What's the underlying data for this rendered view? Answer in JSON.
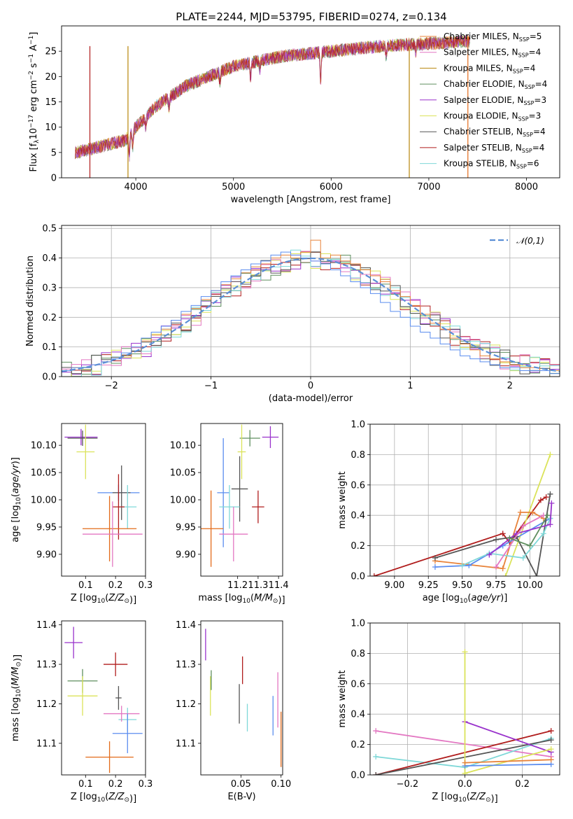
{
  "title": "PLATE=2244, MJD=53795, FIBERID=0274, z=0.134",
  "colors": {
    "chabrier_miles": "#e8833a",
    "salpeter_miles": "#e377c2",
    "kroupa_miles": "#b8860b",
    "chabrier_elodie": "#5f8f5f",
    "salpeter_elodie": "#9932cc",
    "kroupa_elodie": "#dbe35a",
    "chabrier_stelib": "#555555",
    "salpeter_stelib": "#b01c1c",
    "kroupa_stelib": "#7fd8d8",
    "extra_blue": "#5b8def",
    "extra_orange": "#e36b1a"
  },
  "chart_data": [
    {
      "id": "spectrum",
      "type": "line",
      "title": "PLATE=2244, MJD=53795, FIBERID=0274, z=0.134",
      "xlabel": "wavelength [Angstrom, rest frame]",
      "ylabel": "Flux [f_λ10^-17 erg cm^-2 s^-1 A^-1]",
      "xlim": [
        3240,
        8340
      ],
      "ylim": [
        0,
        30
      ],
      "xticks": [
        4000,
        5000,
        6000,
        7000,
        8000
      ],
      "yticks": [
        0,
        5,
        10,
        15,
        20,
        25
      ],
      "legend_position": "top-right",
      "legend": [
        {
          "label": "Chabrier MILES, N",
          "sub": "SSP",
          "n": "=5",
          "color": "#e8833a"
        },
        {
          "label": "Salpeter MILES, N",
          "sub": "SSP",
          "n": "=4",
          "color": "#e377c2"
        },
        {
          "label": "Kroupa MILES, N",
          "sub": "SSP",
          "n": "=4",
          "color": "#b8860b"
        },
        {
          "label": "Chabrier ELODIE, N",
          "sub": "SSP",
          "n": "=4",
          "color": "#5f8f5f"
        },
        {
          "label": "Salpeter ELODIE, N",
          "sub": "SSP",
          "n": "=3",
          "color": "#9932cc"
        },
        {
          "label": "Kroupa ELODIE, N",
          "sub": "SSP",
          "n": "=3",
          "color": "#dbe35a"
        },
        {
          "label": "Chabrier STELIB, N",
          "sub": "SSP",
          "n": "=4",
          "color": "#555555"
        },
        {
          "label": "Salpeter STELIB, N",
          "sub": "SSP",
          "n": "=4",
          "color": "#b01c1c"
        },
        {
          "label": "Kroupa STELIB, N",
          "sub": "SSP",
          "n": "=6",
          "color": "#7fd8d8"
        }
      ],
      "continuum": {
        "x": [
          3380,
          3500,
          3700,
          3900,
          4000,
          4200,
          4500,
          5000,
          5500,
          6000,
          6500,
          7000,
          7400
        ],
        "y": [
          5,
          5.5,
          6.5,
          7.5,
          10,
          14,
          18,
          22,
          24,
          25,
          26,
          26.5,
          27
        ]
      },
      "edge_lines": [
        {
          "x": 3530,
          "color": "#b01c1c"
        },
        {
          "x": 3920,
          "color": "#b8860b"
        },
        {
          "x": 6800,
          "color": "#b8860b"
        },
        {
          "x": 7400,
          "color": "#e36b1a"
        }
      ]
    },
    {
      "id": "residuals",
      "type": "bar",
      "xlabel": "(data-model)/error",
      "ylabel": "Normed distribution",
      "xlim": [
        -2.5,
        2.5
      ],
      "ylim": [
        0,
        0.51
      ],
      "xticks": [
        -2,
        -1,
        0,
        1,
        2
      ],
      "yticks": [
        0.0,
        0.1,
        0.2,
        0.3,
        0.4,
        0.5
      ],
      "grid": true,
      "legend_position": "top-right",
      "legend": [
        {
          "label": "𝒩(0,1)",
          "color": "#5b8fd6"
        }
      ],
      "bin_width": 0.1,
      "histograms": [
        {
          "color": "#e8833a",
          "values": [
            0.02,
            0.03,
            0.03,
            0.04,
            0.05,
            0.06,
            0.07,
            0.1,
            0.12,
            0.14,
            0.16,
            0.19,
            0.21,
            0.23,
            0.26,
            0.29,
            0.31,
            0.33,
            0.35,
            0.37,
            0.38,
            0.4,
            0.41,
            0.4,
            0.42,
            0.46,
            0.4,
            0.41,
            0.39,
            0.38,
            0.36,
            0.34,
            0.32,
            0.29,
            0.27,
            0.24,
            0.21,
            0.18,
            0.16,
            0.13,
            0.11,
            0.09,
            0.07,
            0.06,
            0.05,
            0.04,
            0.03,
            0.03,
            0.02,
            0.02
          ]
        },
        {
          "color": "#5b8def",
          "values": [
            0.02,
            0.03,
            0.03,
            0.04,
            0.05,
            0.06,
            0.08,
            0.1,
            0.13,
            0.15,
            0.17,
            0.19,
            0.22,
            0.24,
            0.27,
            0.29,
            0.32,
            0.34,
            0.36,
            0.38,
            0.39,
            0.41,
            0.42,
            0.41,
            0.4,
            0.39,
            0.38,
            0.36,
            0.34,
            0.32,
            0.3,
            0.28,
            0.25,
            0.22,
            0.2,
            0.17,
            0.15,
            0.13,
            0.11,
            0.09,
            0.07,
            0.06,
            0.05,
            0.04,
            0.03,
            0.03,
            0.02,
            0.02,
            0.02,
            0.01
          ]
        }
      ],
      "normal_curve": {
        "mean": 0,
        "std": 1
      }
    },
    {
      "id": "age_vs_Z",
      "type": "scatter",
      "xlabel": "Z [log10(Z/Z⊙)]",
      "ylabel": "age [log10(age/yr)]",
      "xlim": [
        0.02,
        0.3
      ],
      "ylim": [
        9.86,
        10.14
      ],
      "xticks": [
        0.1,
        0.2,
        0.3
      ],
      "yticks": [
        9.9,
        9.95,
        10.0,
        10.05,
        10.1
      ],
      "points": [
        {
          "x": 0.085,
          "y": 10.115,
          "xerr": 0.055,
          "yerr": 0.015,
          "color": "#9932cc"
        },
        {
          "x": 0.09,
          "y": 10.113,
          "xerr": 0.05,
          "yerr": 0.014,
          "color": "#555555"
        },
        {
          "x": 0.1,
          "y": 10.088,
          "xerr": 0.03,
          "yerr": 0.05,
          "color": "#dbe35a"
        },
        {
          "x": 0.21,
          "y": 10.013,
          "xerr": 0.07,
          "yerr": 0.015,
          "color": "#5b8def"
        },
        {
          "x": 0.22,
          "y": 10.013,
          "xerr": 0.03,
          "yerr": 0.05,
          "color": "#555555"
        },
        {
          "x": 0.24,
          "y": 9.987,
          "xerr": 0.03,
          "yerr": 0.04,
          "color": "#7fd8d8"
        },
        {
          "x": 0.21,
          "y": 9.987,
          "xerr": 0.02,
          "yerr": 0.06,
          "color": "#b01c1c"
        },
        {
          "x": 0.18,
          "y": 9.947,
          "xerr": 0.09,
          "yerr": 0.06,
          "color": "#e36b1a"
        },
        {
          "x": 0.19,
          "y": 9.937,
          "xerr": 0.1,
          "yerr": 0.06,
          "color": "#e377c2"
        }
      ]
    },
    {
      "id": "age_vs_mass",
      "type": "scatter",
      "xlabel": "mass [log10(M/M⊙)]",
      "xlim": [
        11.02,
        11.42
      ],
      "ylim": [
        9.86,
        10.14
      ],
      "xticks": [
        11.2,
        11.3,
        11.4
      ],
      "yticks": [
        9.9,
        9.95,
        10.0,
        10.05,
        10.1
      ],
      "points": [
        {
          "x": 11.36,
          "y": 10.115,
          "xerr": 0.04,
          "yerr": 0.02,
          "color": "#9932cc"
        },
        {
          "x": 11.26,
          "y": 10.113,
          "xerr": 0.05,
          "yerr": 0.015,
          "color": "#5f8f5f"
        },
        {
          "x": 11.22,
          "y": 10.088,
          "xerr": 0.02,
          "yerr": 0.05,
          "color": "#dbe35a"
        },
        {
          "x": 11.13,
          "y": 10.013,
          "xerr": 0.03,
          "yerr": 0.1,
          "color": "#5b8def"
        },
        {
          "x": 11.21,
          "y": 10.02,
          "xerr": 0.04,
          "yerr": 0.06,
          "color": "#555555"
        },
        {
          "x": 11.16,
          "y": 9.987,
          "xerr": 0.05,
          "yerr": 0.04,
          "color": "#7fd8d8"
        },
        {
          "x": 11.3,
          "y": 9.987,
          "xerr": 0.03,
          "yerr": 0.03,
          "color": "#b01c1c"
        },
        {
          "x": 11.07,
          "y": 9.947,
          "xerr": 0.06,
          "yerr": 0.07,
          "color": "#e36b1a"
        },
        {
          "x": 11.18,
          "y": 9.937,
          "xerr": 0.07,
          "yerr": 0.05,
          "color": "#e377c2"
        }
      ]
    },
    {
      "id": "weight_vs_age",
      "type": "line",
      "xlabel": "age [log10(age/yr)]",
      "ylabel": "mass weight",
      "xlim": [
        8.82,
        10.22
      ],
      "ylim": [
        0,
        1
      ],
      "xticks": [
        9.0,
        9.25,
        9.5,
        9.75,
        10.0
      ],
      "yticks": [
        0.0,
        0.2,
        0.4,
        0.6,
        0.8,
        1.0
      ],
      "grid": true,
      "series": [
        {
          "color": "#b01c1c",
          "x": [
            8.85,
            9.8,
            9.85,
            10.08,
            10.12
          ],
          "y": [
            0.0,
            0.28,
            0.22,
            0.5,
            0.52
          ]
        },
        {
          "color": "#dbe35a",
          "x": [
            9.82,
            10.15
          ],
          "y": [
            0.0,
            0.8
          ]
        },
        {
          "color": "#e8833a",
          "x": [
            9.3,
            9.8,
            9.93,
            10.02,
            10.1
          ],
          "y": [
            0.1,
            0.05,
            0.42,
            0.42,
            0.38
          ]
        },
        {
          "color": "#5b8def",
          "x": [
            9.3,
            9.55,
            9.8,
            10.15
          ],
          "y": [
            0.06,
            0.07,
            0.2,
            0.38
          ]
        },
        {
          "color": "#555555",
          "x": [
            9.3,
            9.75,
            9.9,
            10.05,
            10.15
          ],
          "y": [
            0.12,
            0.24,
            0.26,
            0.0,
            0.54
          ]
        },
        {
          "color": "#7fd8d8",
          "x": [
            9.5,
            9.7,
            9.95,
            10.1,
            10.15
          ],
          "y": [
            0.07,
            0.15,
            0.12,
            0.28,
            0.38
          ]
        },
        {
          "color": "#9932cc",
          "x": [
            9.7,
            9.9,
            10.15,
            10.16
          ],
          "y": [
            0.14,
            0.28,
            0.34,
            0.48
          ]
        },
        {
          "color": "#e377c2",
          "x": [
            9.75,
            9.95,
            10.1
          ],
          "y": [
            0.06,
            0.33,
            0.4
          ]
        },
        {
          "color": "#5f8f5f",
          "x": [
            9.85,
            10.0,
            10.13
          ],
          "y": [
            0.25,
            0.2,
            0.4
          ]
        }
      ]
    },
    {
      "id": "mass_vs_Z",
      "type": "scatter",
      "xlabel": "Z [log10(Z/Z⊙)]",
      "ylabel": "mass [log10(M/M⊙)]",
      "xlim": [
        0.02,
        0.3
      ],
      "ylim": [
        11.02,
        11.41
      ],
      "xticks": [
        0.1,
        0.2,
        0.3
      ],
      "yticks": [
        11.1,
        11.2,
        11.3,
        11.4
      ],
      "points": [
        {
          "x": 0.06,
          "y": 11.355,
          "xerr": 0.03,
          "yerr": 0.04,
          "color": "#9932cc"
        },
        {
          "x": 0.2,
          "y": 11.3,
          "xerr": 0.04,
          "yerr": 0.03,
          "color": "#b01c1c"
        },
        {
          "x": 0.09,
          "y": 11.258,
          "xerr": 0.05,
          "yerr": 0.03,
          "color": "#5f8f5f"
        },
        {
          "x": 0.21,
          "y": 11.215,
          "xerr": 0.01,
          "yerr": 0.03,
          "color": "#555555"
        },
        {
          "x": 0.09,
          "y": 11.22,
          "xerr": 0.05,
          "yerr": 0.05,
          "color": "#dbe35a"
        },
        {
          "x": 0.24,
          "y": 11.16,
          "xerr": 0.03,
          "yerr": 0.03,
          "color": "#7fd8d8"
        },
        {
          "x": 0.22,
          "y": 11.175,
          "xerr": 0.06,
          "yerr": 0.02,
          "color": "#e377c2"
        },
        {
          "x": 0.24,
          "y": 11.125,
          "xerr": 0.05,
          "yerr": 0.05,
          "color": "#5b8def"
        },
        {
          "x": 0.18,
          "y": 11.065,
          "xerr": 0.08,
          "yerr": 0.04,
          "color": "#e36b1a"
        }
      ]
    },
    {
      "id": "mass_vs_EBV",
      "type": "scatter",
      "xlabel": "E(B-V)",
      "xlim": [
        0.0,
        0.102
      ],
      "ylim": [
        11.02,
        11.41
      ],
      "xticks": [
        0.05,
        0.1
      ],
      "yticks": [
        11.1,
        11.2,
        11.3,
        11.4
      ],
      "points": [
        {
          "x": 0.006,
          "y": 11.35,
          "yerr": 0.04,
          "color": "#9932cc"
        },
        {
          "x": 0.012,
          "y": 11.22,
          "yerr": 0.05,
          "color": "#dbe35a"
        },
        {
          "x": 0.013,
          "y": 11.26,
          "yerr": 0.025,
          "color": "#5f8f5f"
        },
        {
          "x": 0.052,
          "y": 11.285,
          "yerr": 0.035,
          "color": "#b01c1c"
        },
        {
          "x": 0.048,
          "y": 11.2,
          "yerr": 0.05,
          "color": "#555555"
        },
        {
          "x": 0.058,
          "y": 11.165,
          "yerr": 0.035,
          "color": "#7fd8d8"
        },
        {
          "x": 0.09,
          "y": 11.17,
          "yerr": 0.05,
          "color": "#5b8def"
        },
        {
          "x": 0.096,
          "y": 11.21,
          "yerr": 0.07,
          "color": "#e377c2"
        },
        {
          "x": 0.1,
          "y": 11.11,
          "yerr": 0.07,
          "color": "#e36b1a"
        }
      ]
    },
    {
      "id": "weight_vs_Z",
      "type": "line",
      "xlabel": "Z [log10(Z/Z⊙)]",
      "ylabel": "mass weight",
      "xlim": [
        -0.33,
        0.33
      ],
      "ylim": [
        0,
        1
      ],
      "xticks": [
        -0.2,
        0.0,
        0.2
      ],
      "yticks": [
        0.0,
        0.2,
        0.4,
        0.6,
        0.8,
        1.0
      ],
      "grid": true,
      "series": [
        {
          "color": "#e377c2",
          "x": [
            -0.31,
            0.3
          ],
          "y": [
            0.29,
            0.12
          ]
        },
        {
          "color": "#7fd8d8",
          "x": [
            -0.31,
            0.0,
            0.3
          ],
          "y": [
            0.12,
            0.05,
            0.24
          ]
        },
        {
          "color": "#b01c1c",
          "x": [
            -0.31,
            0.3
          ],
          "y": [
            0.0,
            0.29
          ]
        },
        {
          "color": "#555555",
          "x": [
            -0.31,
            0.3
          ],
          "y": [
            0.0,
            0.23
          ]
        },
        {
          "color": "#9932cc",
          "x": [
            0.0,
            0.3
          ],
          "y": [
            0.35,
            0.15
          ]
        },
        {
          "color": "#dbe35a",
          "x": [
            0.0,
            0.0,
            0.3
          ],
          "y": [
            0.81,
            0.01,
            0.17
          ]
        },
        {
          "color": "#5b8def",
          "x": [
            0.0,
            0.3
          ],
          "y": [
            0.06,
            0.07
          ]
        },
        {
          "color": "#e8833a",
          "x": [
            0.0,
            0.3
          ],
          "y": [
            0.08,
            0.1
          ]
        }
      ]
    }
  ]
}
